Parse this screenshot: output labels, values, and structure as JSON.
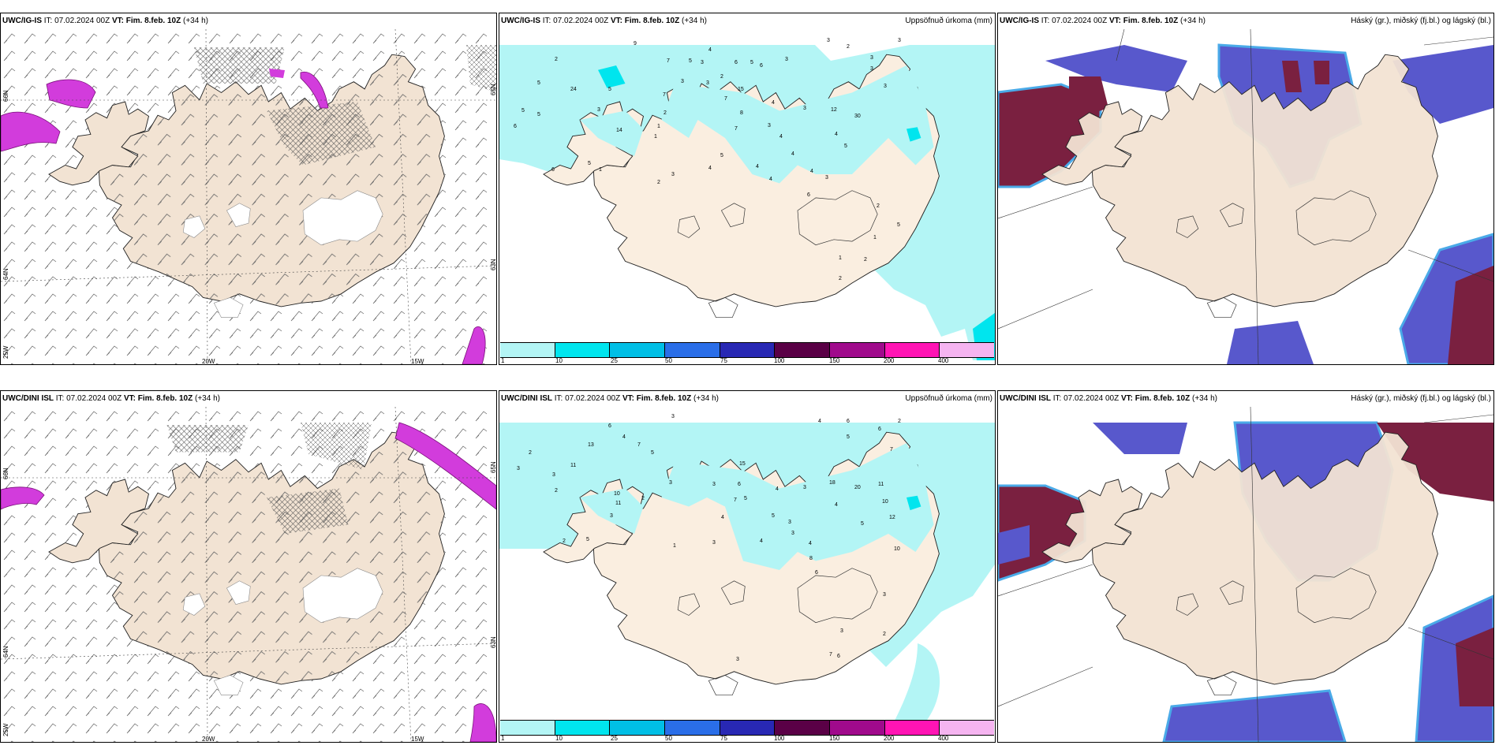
{
  "panels": [
    {
      "id": "p1",
      "model": "UWC/IG-IS",
      "it_label": "IT:",
      "init": "07.02.2024 00Z",
      "vt_label": "VT:",
      "valid": "Fim. 8.feb. 10Z",
      "lead": "(+34 h)",
      "right_title": "",
      "type": "wind",
      "lat_labels": [
        "66N",
        "64N",
        "25W"
      ],
      "lon_labels": [
        "20W",
        "15W"
      ],
      "right_lat_labels": [
        "65N",
        "63N"
      ]
    },
    {
      "id": "p2",
      "model": "UWC/IG-IS",
      "it_label": "IT:",
      "init": "07.02.2024 00Z",
      "vt_label": "VT:",
      "valid": "Fim. 8.feb. 10Z",
      "lead": "(+34 h)",
      "right_title": "Uppsöfnuð úrkoma (mm)",
      "type": "precip"
    },
    {
      "id": "p3",
      "model": "UWC/IG-IS",
      "it_label": "IT:",
      "init": "07.02.2024 00Z",
      "vt_label": "VT:",
      "valid": "Fim. 8.feb. 10Z",
      "lead": "(+34 h)",
      "right_title": "Háský (gr.), miðský (fj.bl.) og lágský (bl.)",
      "type": "cloud"
    },
    {
      "id": "p4",
      "model": "UWC/DINI ISL",
      "it_label": "IT:",
      "init": "07.02.2024 00Z",
      "vt_label": "VT:",
      "valid": "Fim. 8.feb. 10Z",
      "lead": "(+34 h)",
      "right_title": "",
      "type": "wind",
      "lat_labels": [
        "66N",
        "64N",
        "25W"
      ],
      "lon_labels": [
        "20W",
        "15W"
      ],
      "right_lat_labels": [
        "65N",
        "63N"
      ]
    },
    {
      "id": "p5",
      "model": "UWC/DINI ISL",
      "it_label": "IT:",
      "init": "07.02.2024 00Z",
      "vt_label": "VT:",
      "valid": "Fim. 8.feb. 10Z",
      "lead": "(+34 h)",
      "right_title": "Uppsöfnuð úrkoma (mm)",
      "type": "precip"
    },
    {
      "id": "p6",
      "model": "UWC/DINI ISL",
      "it_label": "IT:",
      "init": "07.02.2024 00Z",
      "vt_label": "VT:",
      "valid": "Fim. 8.feb. 10Z",
      "lead": "(+34 h)",
      "right_title": "Háský (gr.), miðský (fj.bl.) og lágský (bl.)",
      "type": "cloud"
    }
  ],
  "precip_legend": {
    "ticks": [
      "1",
      "10",
      "25",
      "50",
      "75",
      "100",
      "150",
      "200",
      "400"
    ],
    "colors": [
      "#b3f5f5",
      "#00e5ee",
      "#00bfe6",
      "#2a6ee8",
      "#2828b4",
      "#5a0046",
      "#a00a8c",
      "#ff14b4",
      "#f5b4f0"
    ]
  },
  "colors": {
    "land": "#f2e3d3",
    "glacier": "#ffffff",
    "precip_light": "#b3f5f5",
    "wind_sea_magenta": "#d23cdc",
    "cloud_high": "#7a2040",
    "cloud_mid": "#5858cc",
    "cloud_low": "#4aaae8"
  },
  "p2_precip_numbers": [
    {
      "v": "9",
      "x": 170,
      "y": 20
    },
    {
      "v": "2",
      "x": 70,
      "y": 40
    },
    {
      "v": "5",
      "x": 48,
      "y": 70
    },
    {
      "v": "4",
      "x": 265,
      "y": 28
    },
    {
      "v": "7",
      "x": 212,
      "y": 42
    },
    {
      "v": "5",
      "x": 240,
      "y": 42
    },
    {
      "v": "3",
      "x": 255,
      "y": 44
    },
    {
      "v": "6",
      "x": 298,
      "y": 44
    },
    {
      "v": "5",
      "x": 318,
      "y": 44
    },
    {
      "v": "6",
      "x": 330,
      "y": 48
    },
    {
      "v": "3",
      "x": 362,
      "y": 40
    },
    {
      "v": "3",
      "x": 415,
      "y": 16
    },
    {
      "v": "2",
      "x": 440,
      "y": 24
    },
    {
      "v": "3",
      "x": 505,
      "y": 16
    },
    {
      "v": "3",
      "x": 470,
      "y": 38
    },
    {
      "v": "3",
      "x": 470,
      "y": 52
    },
    {
      "v": "3",
      "x": 487,
      "y": 74
    },
    {
      "v": "24",
      "x": 90,
      "y": 78
    },
    {
      "v": "5",
      "x": 138,
      "y": 78
    },
    {
      "v": "3",
      "x": 124,
      "y": 104
    },
    {
      "v": "14",
      "x": 148,
      "y": 130
    },
    {
      "v": "7",
      "x": 207,
      "y": 85
    },
    {
      "v": "2",
      "x": 208,
      "y": 108
    },
    {
      "v": "1",
      "x": 200,
      "y": 125
    },
    {
      "v": "1",
      "x": 196,
      "y": 138
    },
    {
      "v": "6",
      "x": 18,
      "y": 125
    },
    {
      "v": "5",
      "x": 28,
      "y": 105
    },
    {
      "v": "5",
      "x": 48,
      "y": 110
    },
    {
      "v": "3",
      "x": 230,
      "y": 68
    },
    {
      "v": "3",
      "x": 262,
      "y": 70
    },
    {
      "v": "2",
      "x": 280,
      "y": 62
    },
    {
      "v": "7",
      "x": 285,
      "y": 90
    },
    {
      "v": "15",
      "x": 302,
      "y": 78
    },
    {
      "v": "8",
      "x": 305,
      "y": 108
    },
    {
      "v": "7",
      "x": 298,
      "y": 128
    },
    {
      "v": "3",
      "x": 340,
      "y": 124
    },
    {
      "v": "4",
      "x": 355,
      "y": 138
    },
    {
      "v": "4",
      "x": 345,
      "y": 95
    },
    {
      "v": "3",
      "x": 385,
      "y": 102
    },
    {
      "v": "12",
      "x": 420,
      "y": 104
    },
    {
      "v": "30",
      "x": 450,
      "y": 112
    },
    {
      "v": "4",
      "x": 425,
      "y": 135
    },
    {
      "v": "5",
      "x": 437,
      "y": 150
    },
    {
      "v": "4",
      "x": 370,
      "y": 160
    },
    {
      "v": "4",
      "x": 394,
      "y": 182
    },
    {
      "v": "3",
      "x": 413,
      "y": 190
    },
    {
      "v": "6",
      "x": 390,
      "y": 212
    },
    {
      "v": "4",
      "x": 325,
      "y": 176
    },
    {
      "v": "4",
      "x": 342,
      "y": 192
    },
    {
      "v": "5",
      "x": 280,
      "y": 162
    },
    {
      "v": "3",
      "x": 218,
      "y": 186
    },
    {
      "v": "2",
      "x": 200,
      "y": 196
    },
    {
      "v": "4",
      "x": 265,
      "y": 178
    },
    {
      "v": "2",
      "x": 478,
      "y": 226
    },
    {
      "v": "5",
      "x": 504,
      "y": 250
    },
    {
      "v": "1",
      "x": 474,
      "y": 266
    },
    {
      "v": "1",
      "x": 430,
      "y": 292
    },
    {
      "v": "2",
      "x": 462,
      "y": 294
    },
    {
      "v": "2",
      "x": 430,
      "y": 318
    },
    {
      "v": "5",
      "x": 112,
      "y": 172
    },
    {
      "v": "6",
      "x": 66,
      "y": 180
    },
    {
      "v": "1",
      "x": 126,
      "y": 180
    }
  ],
  "p5_precip_numbers": [
    {
      "v": "3",
      "x": 218,
      "y": 14
    },
    {
      "v": "6",
      "x": 138,
      "y": 26
    },
    {
      "v": "4",
      "x": 156,
      "y": 40
    },
    {
      "v": "7",
      "x": 175,
      "y": 50
    },
    {
      "v": "5",
      "x": 192,
      "y": 60
    },
    {
      "v": "13",
      "x": 112,
      "y": 50
    },
    {
      "v": "2",
      "x": 37,
      "y": 60
    },
    {
      "v": "3",
      "x": 22,
      "y": 80
    },
    {
      "v": "11",
      "x": 90,
      "y": 76
    },
    {
      "v": "3",
      "x": 67,
      "y": 88
    },
    {
      "v": "2",
      "x": 70,
      "y": 108
    },
    {
      "v": "10",
      "x": 145,
      "y": 112
    },
    {
      "v": "11",
      "x": 147,
      "y": 124
    },
    {
      "v": "3",
      "x": 140,
      "y": 140
    },
    {
      "v": "2",
      "x": 180,
      "y": 118
    },
    {
      "v": "3",
      "x": 215,
      "y": 98
    },
    {
      "v": "6",
      "x": 302,
      "y": 100
    },
    {
      "v": "15",
      "x": 304,
      "y": 74
    },
    {
      "v": "7",
      "x": 297,
      "y": 120
    },
    {
      "v": "5",
      "x": 310,
      "y": 118
    },
    {
      "v": "4",
      "x": 350,
      "y": 106
    },
    {
      "v": "3",
      "x": 385,
      "y": 104
    },
    {
      "v": "18",
      "x": 418,
      "y": 98
    },
    {
      "v": "20",
      "x": 450,
      "y": 104
    },
    {
      "v": "11",
      "x": 480,
      "y": 100
    },
    {
      "v": "10",
      "x": 485,
      "y": 122
    },
    {
      "v": "12",
      "x": 494,
      "y": 142
    },
    {
      "v": "10",
      "x": 500,
      "y": 182
    },
    {
      "v": "5",
      "x": 458,
      "y": 150
    },
    {
      "v": "4",
      "x": 425,
      "y": 126
    },
    {
      "v": "5",
      "x": 345,
      "y": 140
    },
    {
      "v": "3",
      "x": 366,
      "y": 148
    },
    {
      "v": "3",
      "x": 370,
      "y": 162
    },
    {
      "v": "4",
      "x": 392,
      "y": 175
    },
    {
      "v": "8",
      "x": 393,
      "y": 194
    },
    {
      "v": "6",
      "x": 400,
      "y": 212
    },
    {
      "v": "4",
      "x": 281,
      "y": 142
    },
    {
      "v": "3",
      "x": 270,
      "y": 174
    },
    {
      "v": "5",
      "x": 110,
      "y": 170
    },
    {
      "v": "2",
      "x": 80,
      "y": 172
    },
    {
      "v": "4",
      "x": 330,
      "y": 172
    },
    {
      "v": "4",
      "x": 404,
      "y": 20
    },
    {
      "v": "6",
      "x": 440,
      "y": 20
    },
    {
      "v": "6",
      "x": 480,
      "y": 30
    },
    {
      "v": "2",
      "x": 505,
      "y": 20
    },
    {
      "v": "5",
      "x": 440,
      "y": 40
    },
    {
      "v": "7",
      "x": 495,
      "y": 56
    },
    {
      "v": "3",
      "x": 486,
      "y": 240
    },
    {
      "v": "2",
      "x": 486,
      "y": 290
    },
    {
      "v": "3",
      "x": 432,
      "y": 286
    },
    {
      "v": "7",
      "x": 418,
      "y": 316
    },
    {
      "v": "6",
      "x": 428,
      "y": 318
    },
    {
      "v": "3",
      "x": 300,
      "y": 322
    },
    {
      "v": "1",
      "x": 220,
      "y": 178
    },
    {
      "v": "3",
      "x": 270,
      "y": 100
    }
  ]
}
